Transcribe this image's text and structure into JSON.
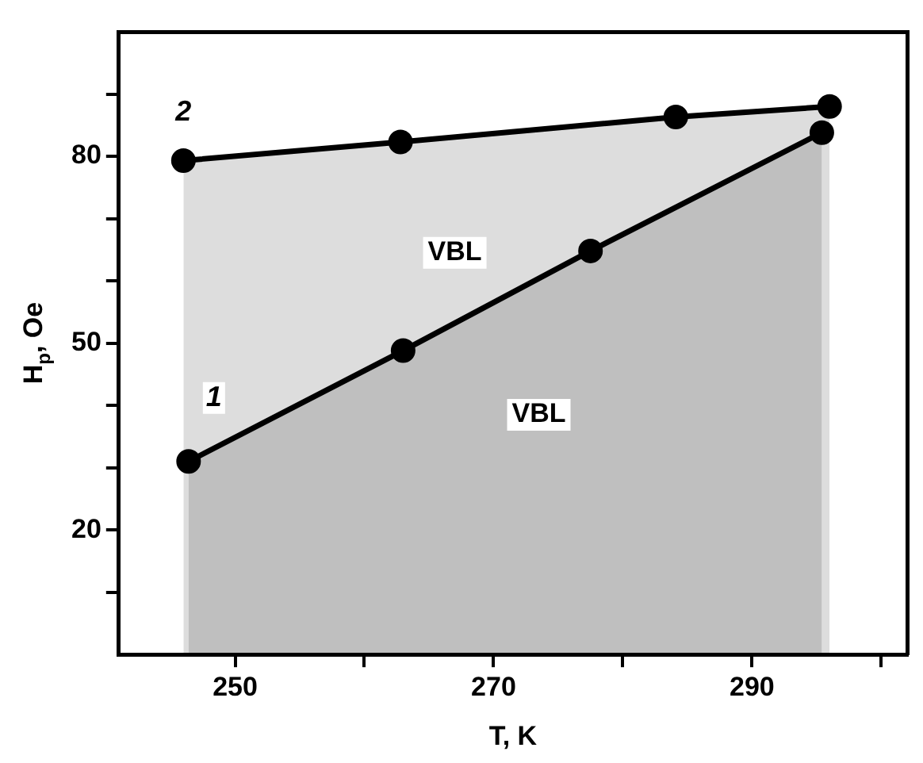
{
  "chart_data": {
    "type": "area",
    "xlabel": "T, K",
    "ylabel": "H$_{p}$, Oe",
    "xlim": [
      241,
      302
    ],
    "ylim": [
      0,
      100
    ],
    "xticks": [
      {
        "value": 250,
        "label": "250"
      },
      {
        "value": 260,
        "label": null
      },
      {
        "value": 270,
        "label": "270"
      },
      {
        "value": 280,
        "label": null
      },
      {
        "value": 290,
        "label": "290"
      },
      {
        "value": 300,
        "label": null
      }
    ],
    "yticks": [
      {
        "value": 10,
        "label": null
      },
      {
        "value": 20,
        "label": "20"
      },
      {
        "value": 30,
        "label": null
      },
      {
        "value": 40,
        "label": null
      },
      {
        "value": 50,
        "label": "50"
      },
      {
        "value": 60,
        "label": null
      },
      {
        "value": 70,
        "label": null
      },
      {
        "value": 80,
        "label": "80"
      },
      {
        "value": 90,
        "label": null
      }
    ],
    "series": [
      {
        "name": "1",
        "color": "#000000",
        "x": [
          246.4,
          263,
          277.5,
          295.4
        ],
        "values": [
          31,
          48.8,
          64.8,
          83.8
        ]
      },
      {
        "name": "2",
        "color": "#000000",
        "x": [
          246,
          262.8,
          284.1,
          296
        ],
        "values": [
          79.3,
          82.3,
          86.3,
          88
        ]
      }
    ],
    "annotations": [
      {
        "text": "VBL",
        "x": 267,
        "y": 64.5
      },
      {
        "text": "VBL",
        "x": 273.5,
        "y": 38.5
      }
    ],
    "marker": "circle",
    "line_style": "solid",
    "grid": false,
    "legend": false
  }
}
